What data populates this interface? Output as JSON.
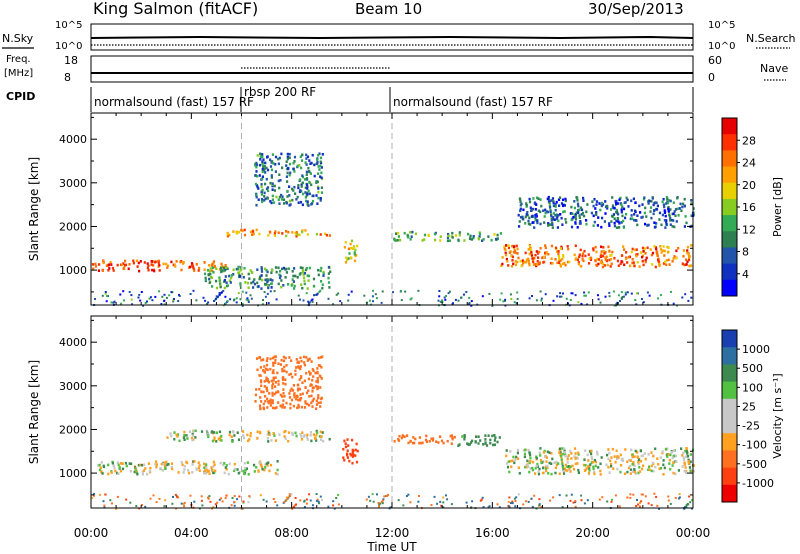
{
  "header": {
    "station": "King Salmon (fitACF)",
    "beam": "Beam 10",
    "date": "30/Sep/2013"
  },
  "top_panels": {
    "nsky": {
      "label": "N.Sky",
      "ticks": [
        "10^5",
        "10^0"
      ]
    },
    "nsearch": {
      "label": "N.Search",
      "ticks": [
        "10^5",
        "10^0"
      ]
    },
    "freq": {
      "label": "Freq.",
      "unit": "[MHz]",
      "ticks": [
        "18",
        "8"
      ]
    },
    "nave": {
      "label": "Nave",
      "ticks": [
        "60",
        "0"
      ]
    },
    "cpid": {
      "label": "CPID",
      "segments": [
        "normalsound (fast) 157 RF",
        "rbsp 200 RF",
        "normalsound (fast) 157 RF"
      ]
    }
  },
  "colorbars": {
    "power": {
      "label": "Power [dB]",
      "ticks": [
        "28",
        "24",
        "20",
        "16",
        "12",
        "8",
        "4"
      ],
      "colors": [
        "#e60000",
        "#ff3000",
        "#ff7000",
        "#ffa000",
        "#e8d000",
        "#88cc22",
        "#33aa55",
        "#2f8050",
        "#2255aa",
        "#1030c0",
        "#0000ff"
      ]
    },
    "velocity": {
      "label": "Velocity [m s⁻¹]",
      "ticks": [
        "1000",
        "500",
        "100",
        "25",
        "-25",
        "-100",
        "-500",
        "-1000"
      ],
      "colors": [
        "#1a3fb0",
        "#2c6fa0",
        "#3d8a50",
        "#52c040",
        "#c8c8c8",
        "#c8c8c8",
        "#ffa020",
        "#ff7020",
        "#ff4010",
        "#ee0000"
      ]
    }
  },
  "chart_data": [
    {
      "type": "heatmap",
      "title": "Power",
      "xlabel": "Time UT",
      "ylabel": "Slant Range [km]",
      "x_ticks": [
        "00:00",
        "04:00",
        "08:00",
        "12:00",
        "16:00",
        "20:00",
        "00:00"
      ],
      "y_ticks": [
        1000,
        2000,
        3000,
        4000
      ],
      "xlim_hours": [
        0,
        24
      ],
      "ylim_km": [
        200,
        4600
      ],
      "colorbar": {
        "label": "Power [dB]",
        "range": [
          0,
          30
        ]
      },
      "features": [
        {
          "t": [
            0.0,
            5.4
          ],
          "range_km": [
            1000,
            1250
          ],
          "power_db": 26
        },
        {
          "t": [
            5.4,
            9.5
          ],
          "range_km": [
            1800,
            1950
          ],
          "power_db": 22
        },
        {
          "t": [
            6.5,
            9.2
          ],
          "range_km": [
            2500,
            3700
          ],
          "power_db": 8
        },
        {
          "t": [
            4.5,
            9.5
          ],
          "range_km": [
            600,
            1100
          ],
          "power_db": 10
        },
        {
          "t": [
            10.0,
            10.6
          ],
          "range_km": [
            1200,
            1700
          ],
          "power_db": 18
        },
        {
          "t": [
            12.0,
            16.3
          ],
          "range_km": [
            1700,
            1900
          ],
          "power_db": 12
        },
        {
          "t": [
            16.3,
            24.0
          ],
          "range_km": [
            1100,
            1600
          ],
          "power_db": 24
        },
        {
          "t": [
            17.0,
            24.0
          ],
          "range_km": [
            2000,
            2700
          ],
          "power_db": 6
        }
      ]
    },
    {
      "type": "heatmap",
      "title": "Velocity",
      "xlabel": "Time UT",
      "ylabel": "Slant Range [km]",
      "x_ticks": [
        "00:00",
        "04:00",
        "08:00",
        "12:00",
        "16:00",
        "20:00",
        "00:00"
      ],
      "y_ticks": [
        1000,
        2000,
        3000,
        4000
      ],
      "xlim_hours": [
        0,
        24
      ],
      "ylim_km": [
        200,
        4600
      ],
      "colorbar": {
        "label": "Velocity [m s⁻¹]",
        "range": [
          -1000,
          1000
        ]
      },
      "features": [
        {
          "t": [
            0.0,
            7.5
          ],
          "range_km": [
            1000,
            1300
          ],
          "velocity": 0
        },
        {
          "t": [
            3.0,
            9.5
          ],
          "range_km": [
            1750,
            2000
          ],
          "velocity": 0
        },
        {
          "t": [
            6.5,
            9.2
          ],
          "range_km": [
            2500,
            3700
          ],
          "velocity": -400
        },
        {
          "t": [
            10.0,
            10.6
          ],
          "range_km": [
            1200,
            1800
          ],
          "velocity": -600
        },
        {
          "t": [
            12.0,
            14.5
          ],
          "range_km": [
            1700,
            1900
          ],
          "velocity": -400
        },
        {
          "t": [
            14.5,
            16.3
          ],
          "range_km": [
            1650,
            1900
          ],
          "velocity": 150
        },
        {
          "t": [
            16.5,
            24.0
          ],
          "range_km": [
            1000,
            1600
          ],
          "velocity": 0
        }
      ]
    }
  ]
}
